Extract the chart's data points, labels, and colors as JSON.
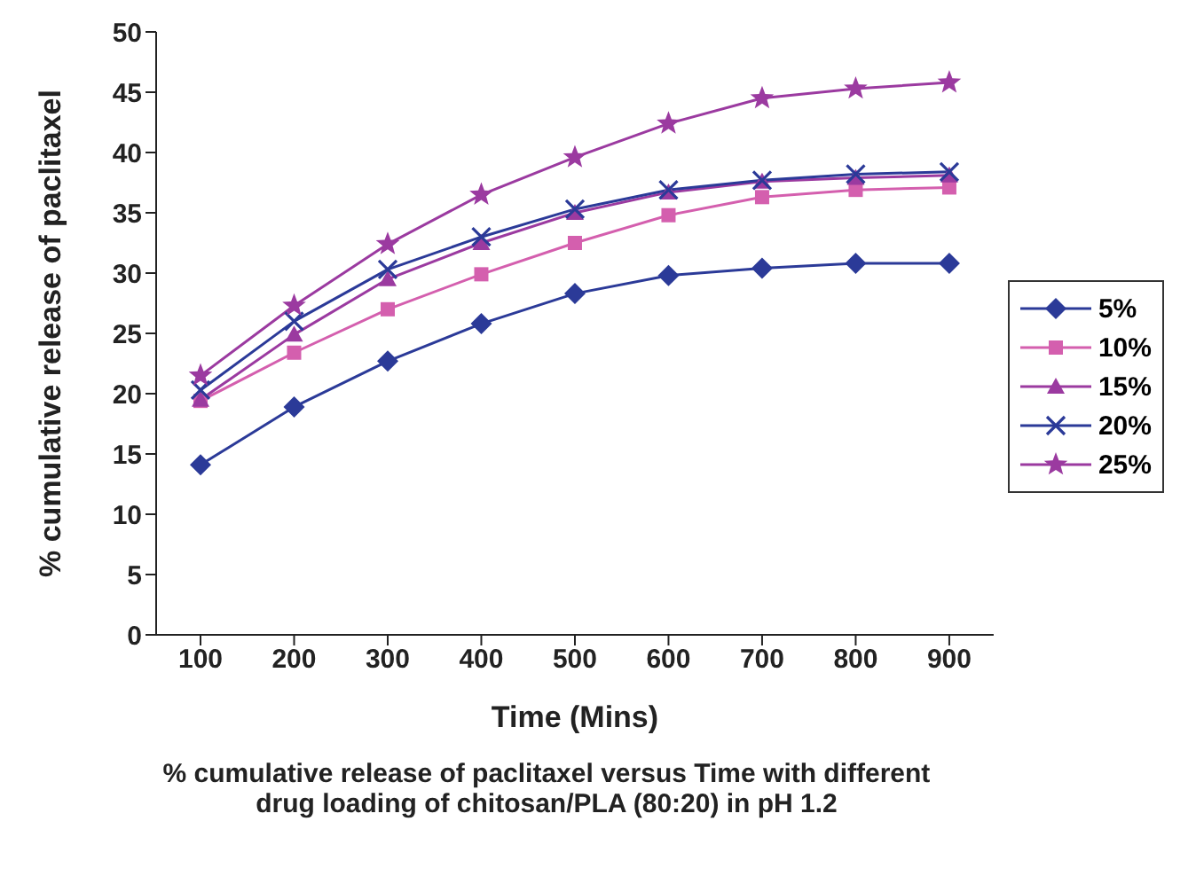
{
  "chart_data": {
    "type": "line",
    "title": "% cumulative release of paclitaxel versus Time with different drug loading of chitosan/PLA (80:20) in pH 1.2",
    "xlabel": "Time (Mins)",
    "ylabel": "% cumulative release of paclitaxel",
    "categories": [
      "100",
      "200",
      "300",
      "400",
      "500",
      "600",
      "700",
      "800",
      "900"
    ],
    "series": [
      {
        "name": "5%",
        "color": "#2b3a98",
        "marker": "diamond",
        "values": [
          14.1,
          18.9,
          22.7,
          25.8,
          28.3,
          29.8,
          30.4,
          30.8,
          30.8
        ]
      },
      {
        "name": "10%",
        "color": "#d45fae",
        "marker": "square",
        "values": [
          19.4,
          23.4,
          27.0,
          29.9,
          32.5,
          34.8,
          36.3,
          36.9,
          37.1
        ]
      },
      {
        "name": "15%",
        "color": "#9b3aa0",
        "marker": "triangle",
        "values": [
          19.5,
          24.9,
          29.5,
          32.5,
          35.0,
          36.7,
          37.6,
          37.9,
          38.1
        ]
      },
      {
        "name": "20%",
        "color": "#2b3a98",
        "marker": "cross",
        "values": [
          20.3,
          26.0,
          30.3,
          33.0,
          35.3,
          36.9,
          37.7,
          38.2,
          38.4
        ]
      },
      {
        "name": "25%",
        "color": "#9b3aa0",
        "marker": "star",
        "values": [
          21.5,
          27.3,
          32.4,
          36.5,
          39.6,
          42.4,
          44.5,
          45.3,
          45.8
        ]
      }
    ],
    "ylim": [
      0,
      50
    ],
    "yticks": [
      0,
      5,
      10,
      15,
      20,
      25,
      30,
      35,
      40,
      45,
      50
    ],
    "grid": false,
    "legend": "right"
  }
}
